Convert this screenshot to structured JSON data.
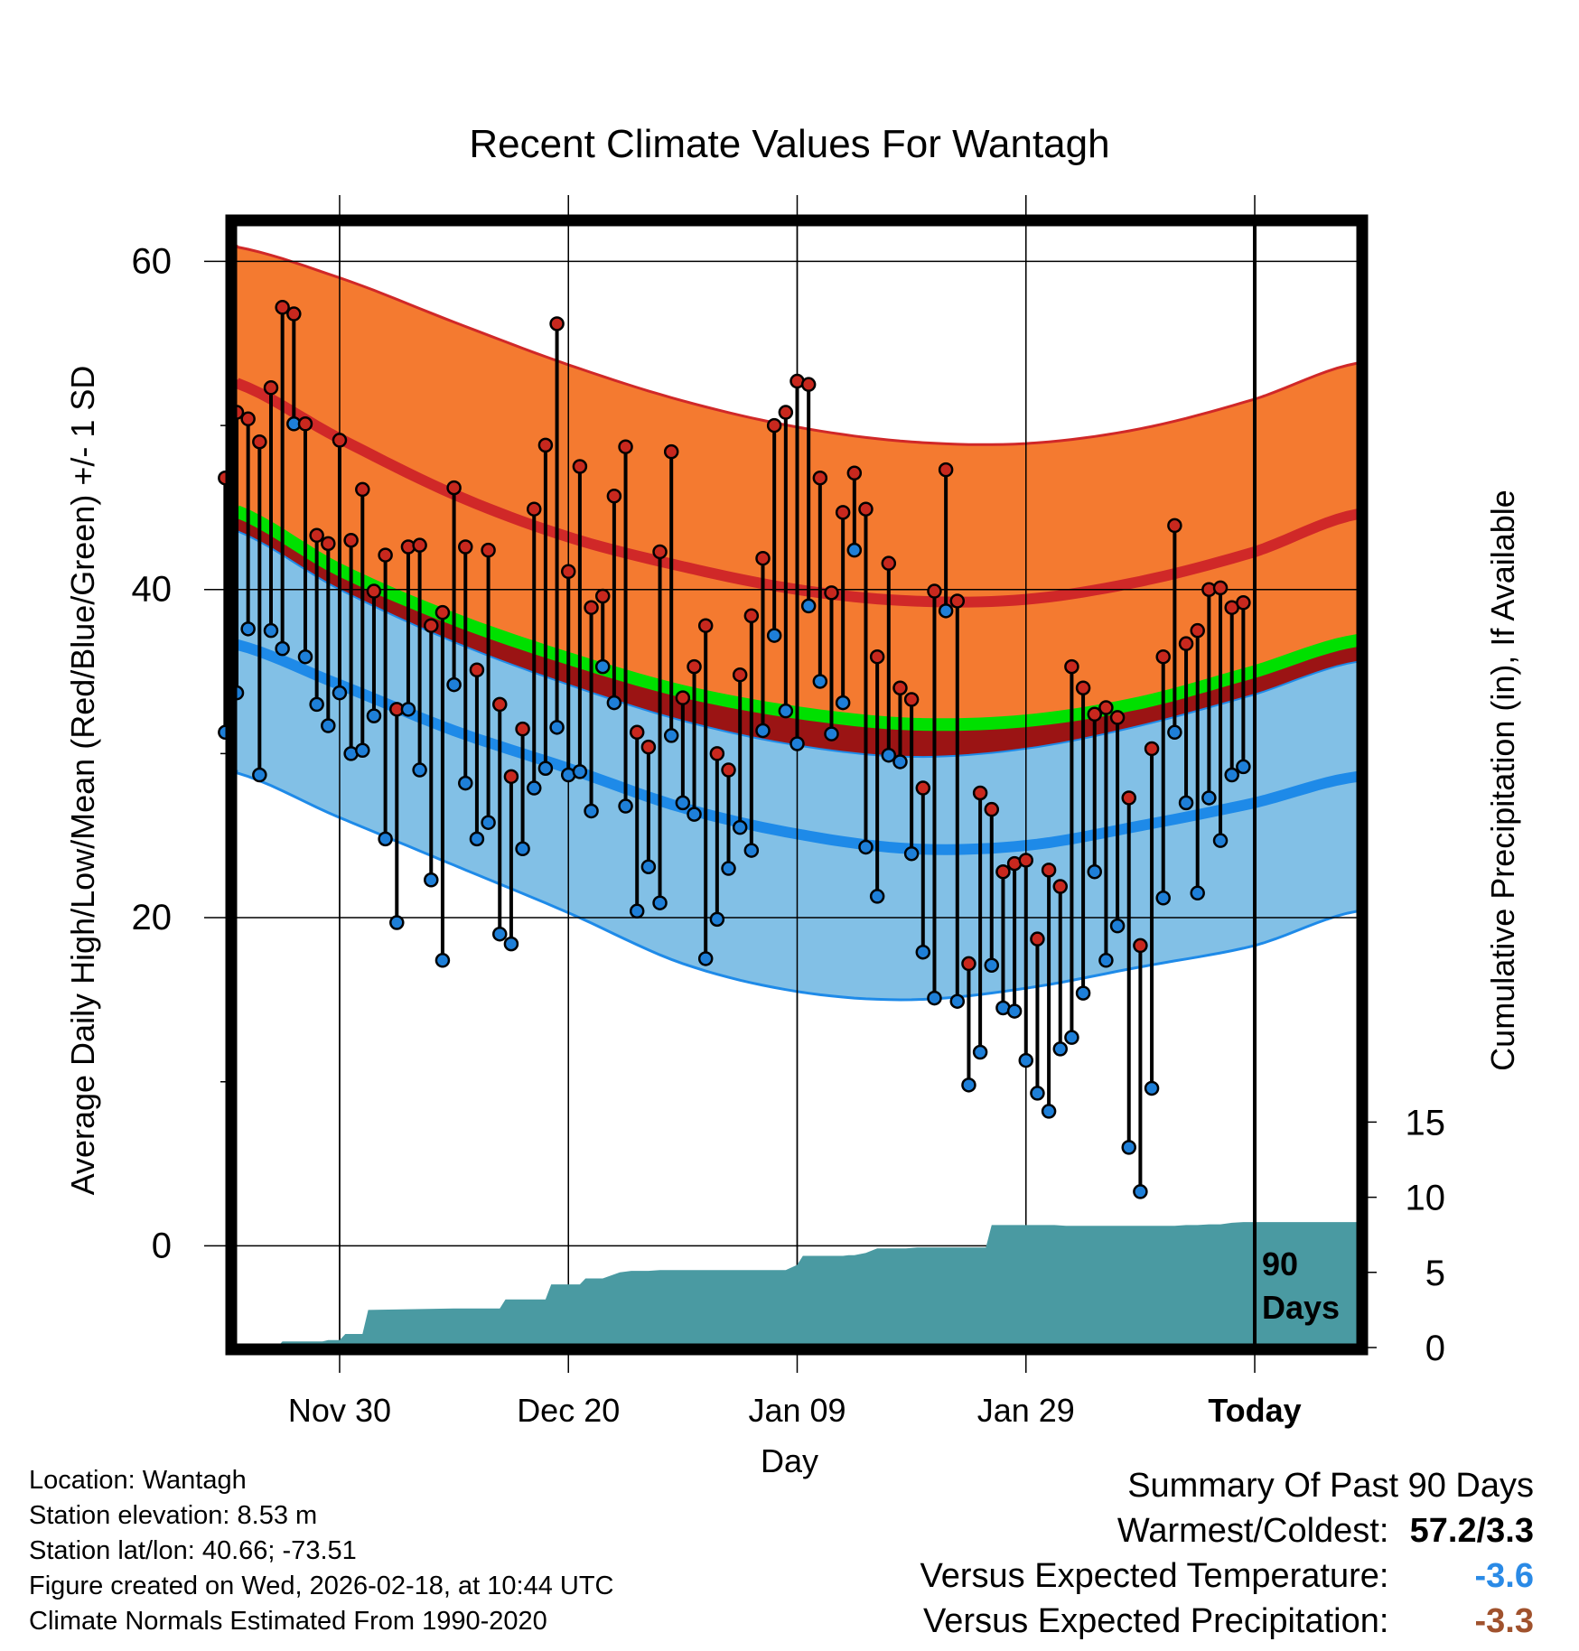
{
  "colors": {
    "orange_band": "#f47a30",
    "normal_high_line": "#d02828",
    "dark_red_band": "#9b1414",
    "green_mean": "#00e000",
    "blue_band": "#82c0e6",
    "normal_low_line": "#1e8ae8",
    "precip_fill": "#4a9aa2",
    "high_dot": "#c8281e",
    "low_dot": "#1e7fd8",
    "temp_summary": "#2a8ae6",
    "precip_summary": "#a0522d"
  },
  "chart_data": {
    "type": "line",
    "title": "Recent Climate Values For Wantagh",
    "xlabel": "Day",
    "ylabel": "Average Daily High/Low/Mean (Red/Blue/Green) +/- 1 SD",
    "y2label": "Cumulative Precipitation (in), If Available",
    "x_range": [
      -89,
      9
    ],
    "ylim": [
      -6.2,
      62.5
    ],
    "y2lim": [
      0,
      75
    ],
    "y_ticks": [
      0,
      20,
      40,
      60
    ],
    "y2_ticks": [
      0,
      5,
      10,
      15
    ],
    "x_ticks": [
      {
        "day": -80,
        "label": "Nov 30"
      },
      {
        "day": -60,
        "label": "Dec 20"
      },
      {
        "day": -40,
        "label": "Jan 09"
      },
      {
        "day": -20,
        "label": "Jan 29"
      },
      {
        "day": 0,
        "label": "Today"
      }
    ],
    "period_label_line1": "90",
    "period_label_line2": "Days",
    "period_marker_day": 0,
    "normals": {
      "day": [
        -90,
        -80,
        -70,
        -60,
        -50,
        -40,
        -30,
        -20,
        -10,
        0,
        9
      ],
      "high_upper": [
        61.0,
        59.0,
        56.3,
        53.7,
        51.5,
        49.9,
        49.0,
        48.9,
        49.8,
        51.6,
        53.8
      ],
      "high_mean": [
        52.8,
        49.2,
        45.8,
        43.2,
        41.4,
        40.0,
        39.3,
        39.4,
        40.5,
        42.3,
        44.6
      ],
      "mean": [
        45.0,
        41.2,
        38.2,
        35.8,
        33.8,
        32.5,
        31.8,
        32.0,
        33.1,
        35.0,
        36.9
      ],
      "mean_lower": [
        43.8,
        40.0,
        36.8,
        34.2,
        32.0,
        30.5,
        29.8,
        30.3,
        31.7,
        33.6,
        35.6
      ],
      "low_mean": [
        36.8,
        34.2,
        31.4,
        29.1,
        26.7,
        25.1,
        24.2,
        24.4,
        25.6,
        27.0,
        28.6
      ],
      "low_lower": [
        29.0,
        26.1,
        23.2,
        20.3,
        17.2,
        15.5,
        15.0,
        15.7,
        17.0,
        18.3,
        20.4
      ]
    },
    "days": [
      -90,
      -89,
      -88,
      -87,
      -86,
      -85,
      -84,
      -83,
      -82,
      -81,
      -80,
      -79,
      -78,
      -77,
      -76,
      -75,
      -74,
      -73,
      -72,
      -71,
      -70,
      -69,
      -68,
      -67,
      -66,
      -65,
      -64,
      -63,
      -62,
      -61,
      -60,
      -59,
      -58,
      -57,
      -56,
      -55,
      -54,
      -53,
      -52,
      -51,
      -50,
      -49,
      -48,
      -47,
      -46,
      -45,
      -44,
      -43,
      -42,
      -41,
      -40,
      -39,
      -38,
      -37,
      -36,
      -35,
      -34,
      -33,
      -32,
      -31,
      -30,
      -29,
      -28,
      -27,
      -26,
      -25,
      -24,
      -23,
      -22,
      -21,
      -20,
      -19,
      -18,
      -17,
      -16,
      -15,
      -14,
      -13,
      -12,
      -11,
      -10,
      -9,
      -8,
      -7,
      -6,
      -5,
      -4,
      -3,
      -2,
      -1
    ],
    "highs": [
      46.8,
      50.8,
      50.4,
      49.0,
      52.3,
      57.2,
      56.8,
      50.1,
      43.3,
      42.8,
      49.1,
      43.0,
      46.1,
      39.9,
      42.1,
      32.7,
      42.6,
      42.7,
      37.8,
      38.6,
      46.2,
      42.6,
      35.1,
      42.4,
      33.0,
      28.6,
      31.5,
      44.9,
      48.8,
      56.2,
      41.1,
      47.5,
      38.9,
      39.6,
      45.7,
      48.7,
      31.3,
      30.4,
      42.3,
      48.4,
      33.4,
      35.3,
      37.8,
      30.0,
      29.0,
      34.8,
      38.4,
      41.9,
      50.0,
      50.8,
      52.7,
      52.5,
      46.8,
      39.8,
      44.7,
      47.1,
      44.9,
      35.9,
      41.6,
      34.0,
      33.3,
      27.9,
      39.9,
      47.3,
      39.3,
      17.2,
      27.6,
      26.6,
      22.8,
      23.3,
      23.5,
      18.7,
      22.9,
      21.9,
      35.3,
      34.0,
      32.4,
      32.8,
      32.2,
      27.3,
      18.3,
      30.3,
      35.9,
      43.9,
      36.7,
      37.5,
      40.0,
      40.1,
      38.9,
      39.2
    ],
    "lows": [
      31.3,
      33.7,
      37.6,
      28.7,
      37.5,
      36.4,
      50.1,
      35.9,
      33.0,
      31.7,
      33.7,
      30.0,
      30.2,
      32.3,
      24.8,
      19.7,
      32.7,
      29.0,
      22.3,
      17.4,
      34.2,
      28.2,
      24.8,
      25.8,
      19.0,
      18.4,
      24.2,
      27.9,
      29.1,
      31.6,
      28.7,
      28.9,
      26.5,
      35.3,
      33.1,
      26.8,
      20.4,
      23.1,
      20.9,
      31.1,
      27.0,
      26.3,
      17.5,
      19.9,
      23.0,
      25.5,
      24.1,
      31.4,
      37.2,
      32.6,
      30.6,
      39.0,
      34.4,
      31.2,
      33.1,
      42.4,
      24.3,
      21.3,
      29.9,
      29.5,
      23.9,
      17.9,
      15.1,
      38.7,
      14.9,
      9.8,
      11.8,
      17.1,
      14.5,
      14.3,
      11.3,
      9.3,
      8.2,
      12.0,
      12.7,
      15.4,
      22.8,
      17.4,
      19.5,
      6.0,
      3.3,
      9.6,
      21.2,
      31.3,
      27.0,
      21.5,
      27.3,
      24.7,
      28.7,
      29.2
    ],
    "precip_cumulative": {
      "day": [
        -90,
        -85.5,
        -85,
        -81.5,
        -81,
        -80,
        -79.5,
        -78,
        -77.5,
        -70,
        -66,
        -65.5,
        -62,
        -61.5,
        -59,
        -58.5,
        -57,
        -55.5,
        -54.5,
        -53,
        -52,
        -41,
        -40,
        -39.5,
        -36,
        -35.5,
        -35,
        -34,
        -33,
        -30.5,
        -29.5,
        -23.5,
        -23,
        -17.5,
        -16.5,
        -7,
        -6,
        -5,
        -4,
        -3,
        -2,
        -1,
        0,
        9
      ],
      "value": [
        0.0,
        0.0,
        0.4,
        0.4,
        0.5,
        0.5,
        0.9,
        0.9,
        2.5,
        2.6,
        2.6,
        3.2,
        3.2,
        4.2,
        4.2,
        4.6,
        4.6,
        5.0,
        5.1,
        5.1,
        5.15,
        5.15,
        5.5,
        6.1,
        6.1,
        6.15,
        6.15,
        6.3,
        6.6,
        6.6,
        6.65,
        6.65,
        8.15,
        8.15,
        8.1,
        8.1,
        8.15,
        8.15,
        8.2,
        8.2,
        8.3,
        8.35,
        8.35,
        8.35
      ]
    }
  },
  "info": {
    "location": "Location: Wantagh",
    "elevation": "Station elevation: 8.53 m",
    "latlon": "Station lat/lon: 40.66; -73.51",
    "created": "Figure created on Wed, 2026-02-18, at 10:44 UTC",
    "normals": "Climate Normals Estimated From 1990-2020"
  },
  "summary": {
    "heading": "Summary Of Past 90 Days",
    "warmest_coldest_label": "Warmest/Coldest:",
    "warmest_coldest_value": "57.2/3.3",
    "temp_label": "Versus Expected Temperature:",
    "temp_value": "-3.6",
    "precip_label": "Versus Expected Precipitation:",
    "precip_value": "-3.3"
  }
}
